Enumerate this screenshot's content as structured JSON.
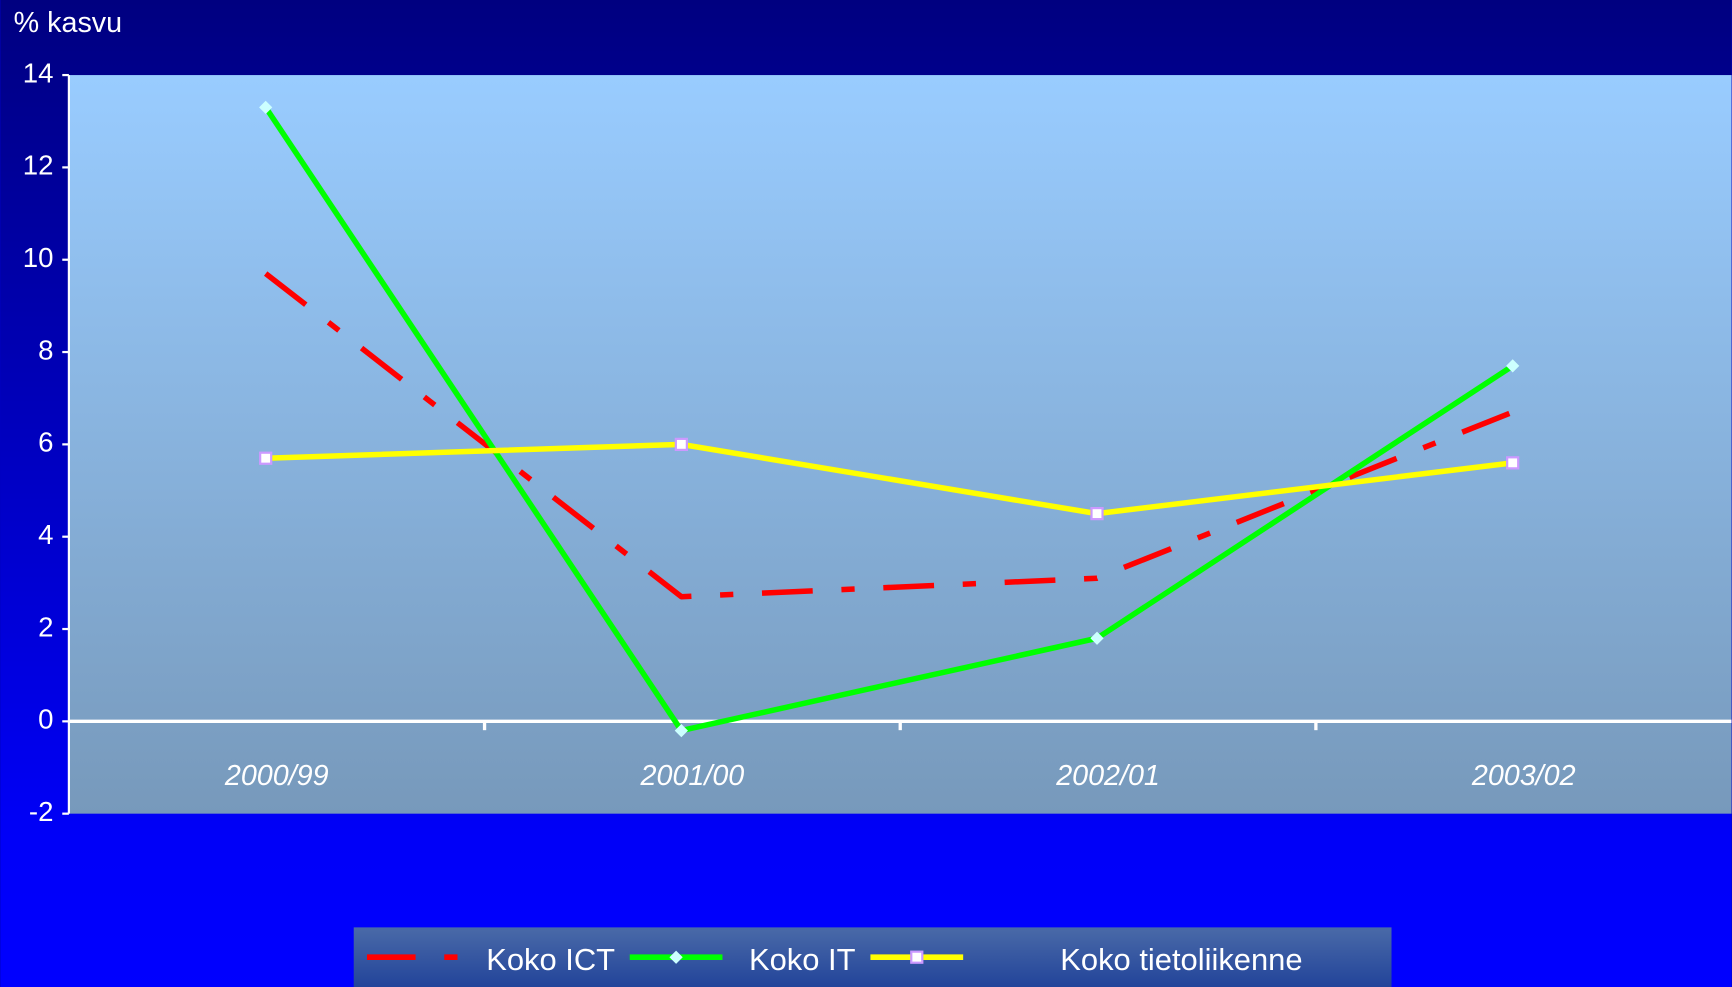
{
  "chart_data": {
    "type": "line",
    "y_label": "% kasvu",
    "categories": [
      "2000/99",
      "2001/00",
      "2002/01",
      "2003/02"
    ],
    "series": [
      {
        "name": "Koko ICT",
        "color": "#ff0000",
        "values": [
          9.7,
          2.7,
          3.1,
          6.7
        ]
      },
      {
        "name": "Koko IT",
        "color": "#00ff00",
        "values": [
          13.3,
          -0.2,
          1.8,
          7.7
        ]
      },
      {
        "name": "Koko tietoliikenne",
        "color": "#ffff00",
        "values": [
          5.7,
          6.0,
          4.5,
          5.6
        ]
      }
    ],
    "ylim": [
      -2,
      14
    ],
    "yticks": [
      -2,
      0,
      2,
      4,
      6,
      8,
      10,
      12,
      14
    ],
    "legend": "bottom"
  }
}
